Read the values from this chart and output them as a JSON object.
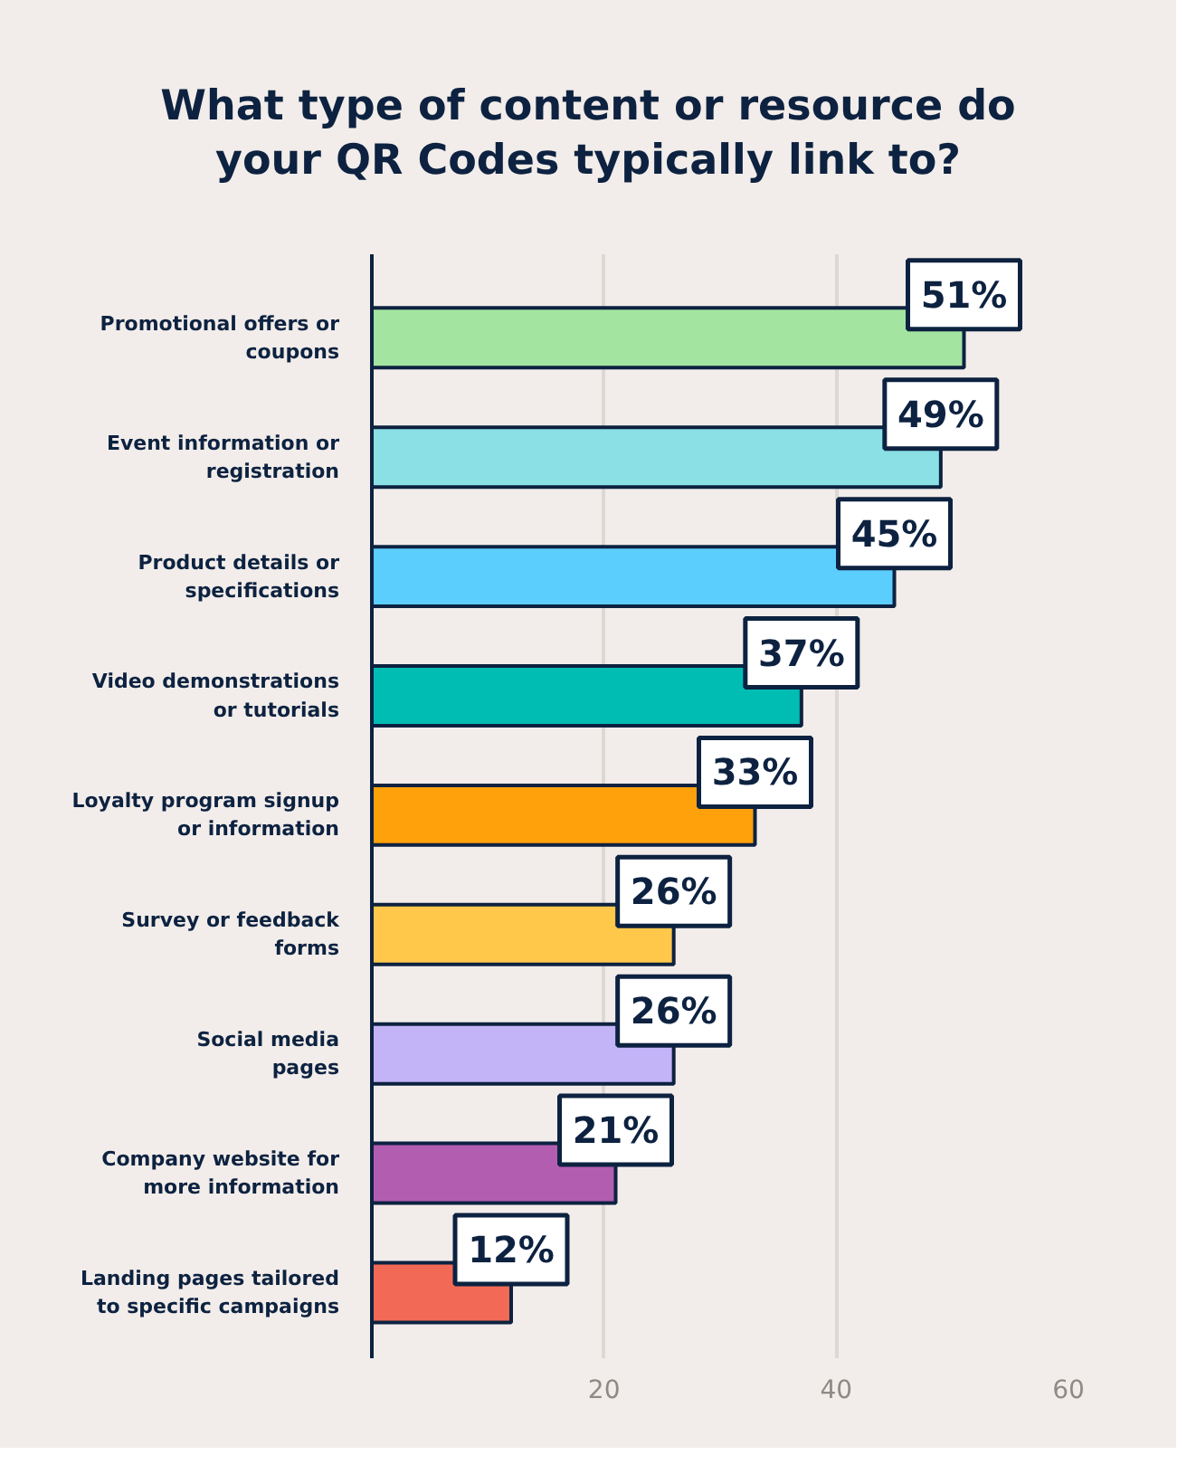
{
  "chart_data": {
    "type": "bar",
    "orientation": "horizontal",
    "title": "What type of content or resource do\nyour QR Codes typically link to?",
    "categories": [
      "Promotional offers or\ncoupons",
      "Event information or\nregistration",
      "Product details or\nspecifications",
      "Video demonstrations\nor tutorials",
      "Loyalty program signup\nor information",
      "Survey or feedback\nforms",
      "Social media\npages",
      "Company website for\nmore information",
      "Landing pages tailored\nto specific campaigns"
    ],
    "values": [
      51,
      49,
      45,
      37,
      33,
      26,
      26,
      21,
      12
    ],
    "value_labels": [
      "51%",
      "49%",
      "45%",
      "37%",
      "33%",
      "26%",
      "26%",
      "21%",
      "12%"
    ],
    "colors": [
      "#a3e4a0",
      "#8ae0e4",
      "#5ccefe",
      "#00bdb4",
      "#ffa10a",
      "#ffc84a",
      "#c3b3f7",
      "#b35db1",
      "#f26a55"
    ],
    "xlim": [
      0,
      60
    ],
    "xticks": [
      20,
      40,
      60
    ],
    "grid": "x"
  }
}
